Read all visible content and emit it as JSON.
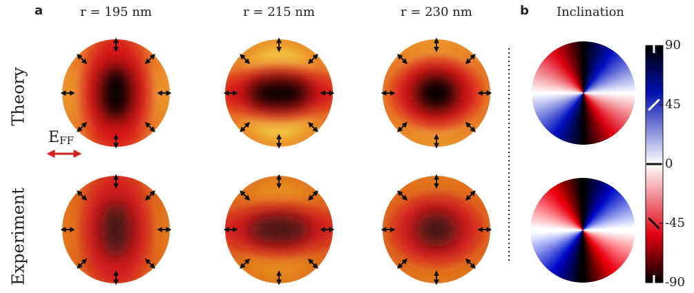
{
  "panel_a": {
    "label": "a",
    "columns": [
      "r = 195 nm",
      "r = 215 nm",
      "r = 230 nm"
    ],
    "rows": [
      "Theory",
      "Experiment"
    ],
    "field": {
      "symbol": "E",
      "subscript": "FF"
    }
  },
  "panel_b": {
    "label": "b",
    "title": "Inclination",
    "colorbar": {
      "lim": [
        -90,
        90
      ],
      "ticks": [
        90,
        45,
        0,
        -45,
        -90
      ]
    }
  }
}
